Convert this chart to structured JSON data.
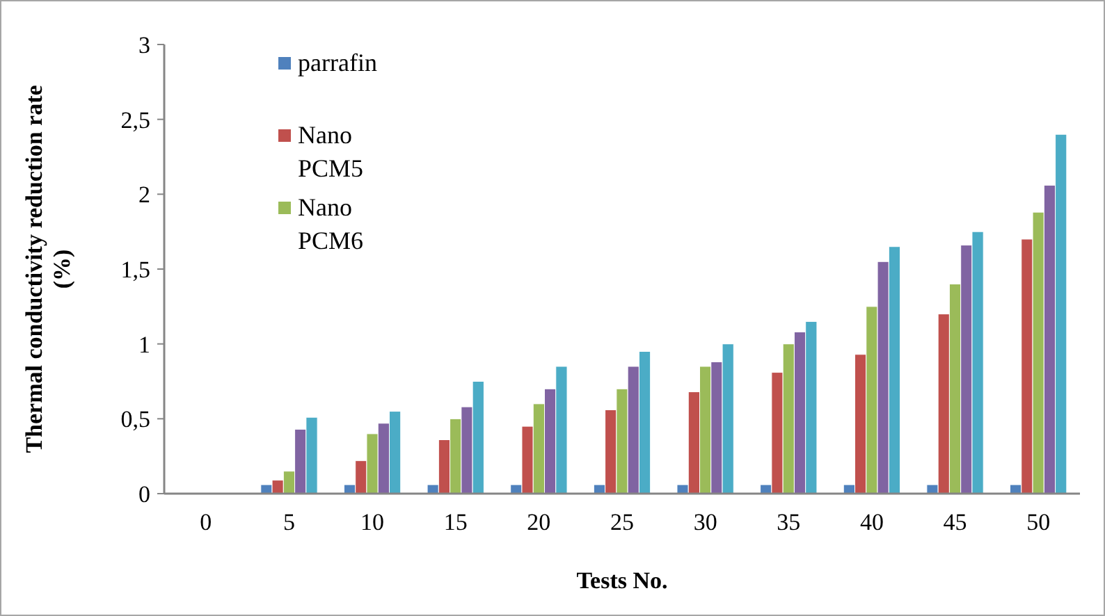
{
  "chart_data": {
    "type": "bar",
    "xlabel": "Tests No.",
    "ylabel": "Thermal conductivity reduction rate (%)",
    "categories": [
      "0",
      "5",
      "10",
      "15",
      "20",
      "25",
      "30",
      "35",
      "40",
      "45",
      "50"
    ],
    "series": [
      {
        "name": "parrafin",
        "color": "#4f81bd",
        "values": [
          0,
          0.06,
          0.06,
          0.06,
          0.06,
          0.06,
          0.06,
          0.06,
          0.06,
          0.06,
          0.06
        ]
      },
      {
        "name": "Nano PCM5",
        "color": "#c0504d",
        "values": [
          0,
          0.09,
          0.22,
          0.36,
          0.45,
          0.56,
          0.68,
          0.81,
          0.93,
          1.2,
          1.7
        ]
      },
      {
        "name": "Nano PCM6",
        "color": "#9bbb59",
        "values": [
          0,
          0.15,
          0.4,
          0.5,
          0.6,
          0.7,
          0.85,
          1.0,
          1.25,
          1.4,
          1.88
        ]
      },
      {
        "color": "#8064a2",
        "values": [
          0,
          0.43,
          0.47,
          0.58,
          0.7,
          0.85,
          0.88,
          1.08,
          1.55,
          1.66,
          2.06
        ]
      },
      {
        "color": "#4bacc6",
        "values": [
          0,
          0.51,
          0.55,
          0.75,
          0.85,
          0.95,
          1.0,
          1.15,
          1.65,
          1.75,
          2.4
        ]
      }
    ],
    "ylim": [
      0,
      3
    ],
    "yticks": [
      0,
      {
        "value": 0.5,
        "label": "0,5"
      },
      1,
      {
        "value": 1.5,
        "label": "1,5"
      },
      2,
      {
        "value": 2.5,
        "label": "2,5"
      },
      3
    ],
    "grid": false,
    "legend": "top left"
  }
}
